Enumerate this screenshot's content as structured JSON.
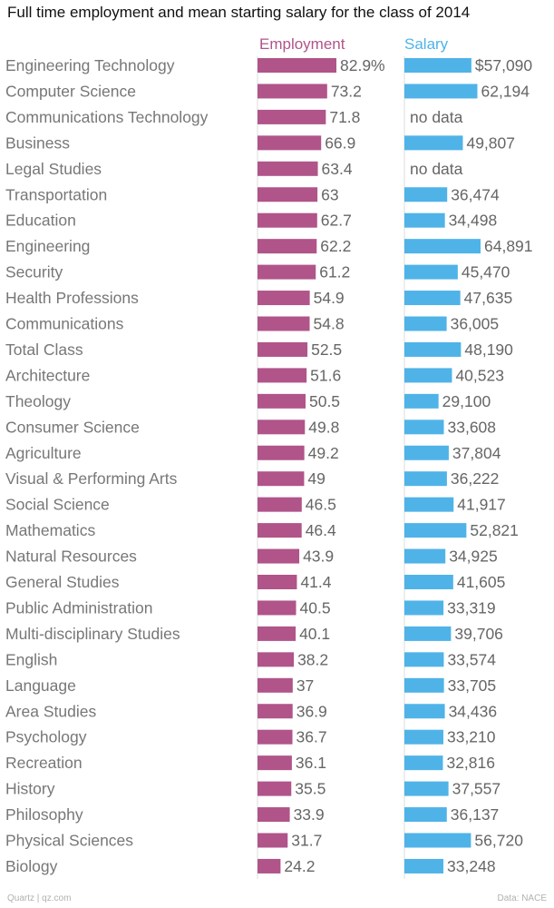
{
  "chart_data": {
    "type": "bar",
    "title": "Full time employment and mean starting salary for the class of 2014",
    "categories": [
      "Engineering Technology",
      "Computer Science",
      "Communications Technology",
      "Business",
      "Legal Studies",
      "Transportation",
      "Education",
      "Engineering",
      "Security",
      "Health Professions",
      "Communications",
      "Total Class",
      "Architecture",
      "Theology",
      "Consumer Science",
      "Agriculture",
      "Visual & Performing Arts",
      "Social Science",
      "Mathematics",
      "Natural Resources",
      "General Studies",
      "Public Administration",
      "Multi-disciplinary Studies",
      "English",
      "Language",
      "Area Studies",
      "Psychology",
      "Recreation",
      "History",
      "Philosophy",
      "Physical Sciences",
      "Biology"
    ],
    "series": [
      {
        "name": "Employment",
        "color": "#b0548a",
        "values": [
          82.9,
          73.2,
          71.8,
          66.9,
          63.4,
          63,
          62.7,
          62.2,
          61.2,
          54.9,
          54.8,
          52.5,
          51.6,
          50.5,
          49.8,
          49.2,
          49,
          46.5,
          46.4,
          43.9,
          41.4,
          40.5,
          40.1,
          38.2,
          37,
          36.9,
          36.7,
          36.1,
          35.5,
          33.9,
          31.7,
          24.2
        ],
        "labels": [
          "82.9%",
          "73.2",
          "71.8",
          "66.9",
          "63.4",
          "63",
          "62.7",
          "62.2",
          "61.2",
          "54.9",
          "54.8",
          "52.5",
          "51.6",
          "50.5",
          "49.8",
          "49.2",
          "49",
          "46.5",
          "46.4",
          "43.9",
          "41.4",
          "40.5",
          "40.1",
          "38.2",
          "37",
          "36.9",
          "36.7",
          "36.1",
          "35.5",
          "33.9",
          "31.7",
          "24.2"
        ],
        "xlim": [
          0,
          100
        ]
      },
      {
        "name": "Salary",
        "color": "#4fb3e8",
        "values": [
          57090,
          62194,
          null,
          49807,
          null,
          36474,
          34498,
          64891,
          45470,
          47635,
          36005,
          48190,
          40523,
          29100,
          33608,
          37804,
          36222,
          41917,
          52821,
          34925,
          41605,
          33319,
          39706,
          33574,
          33705,
          34436,
          33210,
          32816,
          37557,
          36137,
          56720,
          33248
        ],
        "labels": [
          "$57,090",
          "62,194",
          "no data",
          "49,807",
          "no data",
          "36,474",
          "34,498",
          "64,891",
          "45,470",
          "47,635",
          "36,005",
          "48,190",
          "40,523",
          "29,100",
          "33,608",
          "37,804",
          "36,222",
          "41,917",
          "52,821",
          "34,925",
          "41,605",
          "33,319",
          "39,706",
          "33,574",
          "33,705",
          "34,436",
          "33,210",
          "32,816",
          "37,557",
          "36,137",
          "56,720",
          "33,248"
        ],
        "xlim": [
          0,
          75000
        ]
      }
    ],
    "grid": false,
    "legend": "top"
  },
  "footer": {
    "source": "Quartz | qz.com",
    "data_credit": "Data: NACE"
  }
}
